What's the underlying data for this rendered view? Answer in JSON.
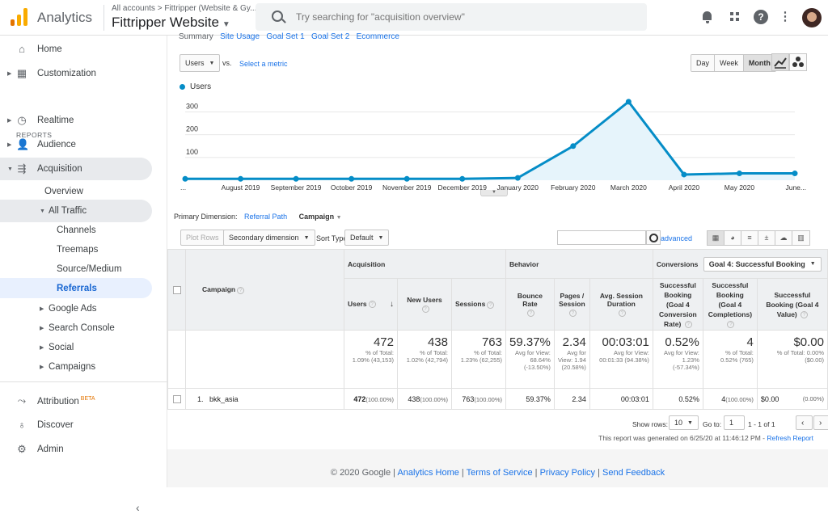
{
  "header": {
    "app_name": "Analytics",
    "breadcrumb": "All accounts > Fittripper (Website & Gy...",
    "property": "Fittripper Website",
    "search_placeholder": "Try searching for \"acquisition overview\""
  },
  "sidebar": {
    "home": "Home",
    "customization": "Customization",
    "reports_label": "REPORTS",
    "realtime": "Realtime",
    "audience": "Audience",
    "acquisition": "Acquisition",
    "overview": "Overview",
    "all_traffic": "All Traffic",
    "channels": "Channels",
    "treemaps": "Treemaps",
    "source_medium": "Source/Medium",
    "referrals": "Referrals",
    "google_ads": "Google Ads",
    "search_console": "Search Console",
    "social": "Social",
    "campaigns": "Campaigns",
    "attribution": "Attribution",
    "beta": "BETA",
    "discover": "Discover",
    "admin": "Admin"
  },
  "explorer_tabs": [
    "Summary",
    "Site Usage",
    "Goal Set 1",
    "Goal Set 2",
    "Ecommerce"
  ],
  "controls": {
    "metric": "Users",
    "vs": "vs.",
    "select_metric": "Select a metric",
    "period_day": "Day",
    "period_week": "Week",
    "period_month": "Month"
  },
  "chart_data": {
    "type": "line",
    "series": [
      {
        "name": "Users",
        "values": [
          6,
          6,
          6,
          6,
          6,
          6,
          10,
          150,
          345,
          25,
          30,
          30
        ]
      }
    ],
    "x": [
      "...",
      "August 2019",
      "September 2019",
      "October 2019",
      "November 2019",
      "December 2019",
      "January 2020",
      "February 2020",
      "March 2020",
      "April 2020",
      "May 2020",
      "June..."
    ],
    "yticks": [
      "100",
      "200",
      "300"
    ],
    "ylim": [
      0,
      380
    ],
    "color": "#058dc7"
  },
  "dimension": {
    "label": "Primary Dimension:",
    "referral_path": "Referral Path",
    "campaign": "Campaign"
  },
  "toolbar": {
    "plot_rows": "Plot Rows",
    "secondary_dimension": "Secondary dimension",
    "sort_type_label": "Sort Type:",
    "sort_default": "Default",
    "advanced": "advanced"
  },
  "table": {
    "group_acquisition": "Acquisition",
    "group_behavior": "Behavior",
    "group_conversions": "Conversions",
    "goal_select": "Goal 4: Successful Booking",
    "col_campaign": "Campaign",
    "col_users": "Users",
    "col_new_users": "New Users",
    "col_sessions": "Sessions",
    "col_bounce": "Bounce Rate",
    "col_pages": "Pages / Session",
    "col_duration": "Avg. Session Duration",
    "col_conv_rate": "Successful Booking (Goal 4 Conversion Rate)",
    "col_completions": "Successful Booking (Goal 4 Completions)",
    "col_value": "Successful Booking (Goal 4 Value)",
    "totals": {
      "users": "472",
      "users_sub": "% of Total: 1.09% (43,153)",
      "new_users": "438",
      "new_users_sub": "% of Total: 1.02% (42,794)",
      "sessions": "763",
      "sessions_sub": "% of Total: 1.23% (62,255)",
      "bounce": "59.37%",
      "bounce_sub": "Avg for View: 68.64% (-13.50%)",
      "pages": "2.34",
      "pages_sub": "Avg for View: 1.94 (20.58%)",
      "duration": "00:03:01",
      "duration_sub": "Avg for View: 00:01:33 (94.38%)",
      "conv_rate": "0.52%",
      "conv_rate_sub": "Avg for View: 1.23% (-57.34%)",
      "completions": "4",
      "completions_sub": "% of Total: 0.52% (765)",
      "value": "$0.00",
      "value_sub": "% of Total: 0.00% ($0.00)"
    },
    "rows": [
      {
        "index": "1.",
        "campaign": "bkk_asia",
        "users": "472",
        "users_pct": "(100.00%)",
        "new_users": "438",
        "new_users_pct": "(100.00%)",
        "sessions": "763",
        "sessions_pct": "(100.00%)",
        "bounce": "59.37%",
        "pages": "2.34",
        "duration": "00:03:01",
        "conv_rate": "0.52%",
        "completions": "4",
        "completions_pct": "(100.00%)",
        "value": "$0.00",
        "value_pct": "(0.00%)"
      }
    ]
  },
  "pagination": {
    "show_rows_label": "Show rows:",
    "show_rows": "10",
    "goto_label": "Go to:",
    "goto_value": "1",
    "range": "1 - 1 of 1"
  },
  "report_note": "This report was generated on 6/25/20 at 11:46:12 PM -",
  "refresh_report": "Refresh Report",
  "footer": {
    "copyright": "© 2020 Google",
    "links": [
      "Analytics Home",
      "Terms of Service",
      "Privacy Policy",
      "Send Feedback"
    ]
  }
}
